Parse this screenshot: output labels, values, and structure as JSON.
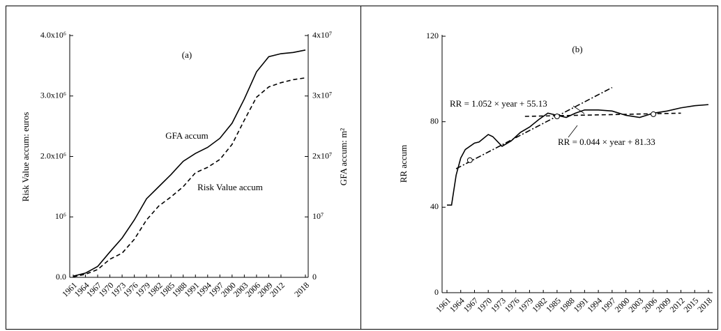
{
  "chart_data": [
    {
      "type": "line",
      "title": "(a)",
      "ylabel": "Risk Value accum: euros",
      "y2label": "GFA accum: m²",
      "x": [
        1961,
        1964,
        1967,
        1970,
        1973,
        1976,
        1979,
        1982,
        1985,
        1988,
        1991,
        1994,
        1997,
        2000,
        2003,
        2006,
        2009,
        2012,
        2015,
        2018
      ],
      "series": [
        {
          "name": "GFA accum",
          "axis": "y2",
          "color": "#000000",
          "style": "solid",
          "values": [
            200000,
            700000,
            1800000,
            4200000,
            6500000,
            9500000,
            13000000,
            15000000,
            17000000,
            19200000,
            20500000,
            21500000,
            23000000,
            25500000,
            29500000,
            34000000,
            36500000,
            37000000,
            37200000,
            37600000
          ]
        },
        {
          "name": "Risk Value accum",
          "axis": "y",
          "color": "#000000",
          "style": "dashed",
          "values": [
            10000,
            50000,
            130000,
            300000,
            400000,
            630000,
            950000,
            1180000,
            1330000,
            1500000,
            1730000,
            1820000,
            1950000,
            2200000,
            2600000,
            2980000,
            3150000,
            3220000,
            3270000,
            3300000
          ]
        }
      ],
      "xlim": [
        1961,
        2018
      ],
      "xticks": [
        1961,
        1964,
        1967,
        1970,
        1973,
        1976,
        1979,
        1982,
        1985,
        1988,
        1991,
        1994,
        1997,
        2000,
        2003,
        2006,
        2009,
        2012,
        2018
      ],
      "ylim": [
        0,
        4000000
      ],
      "yticks": [
        {
          "value": 0,
          "label": "0.0"
        },
        {
          "value": 1000000,
          "label": "10⁶"
        },
        {
          "value": 2000000,
          "label": "2.0x10⁶"
        },
        {
          "value": 3000000,
          "label": "3.0x10⁶"
        },
        {
          "value": 4000000,
          "label": "4.0x10⁶"
        }
      ],
      "y2lim": [
        0,
        40000000
      ],
      "y2ticks": [
        0,
        {
          "value": 10000000,
          "label": "10⁷"
        },
        {
          "value": 20000000,
          "label": "2x10⁷"
        },
        {
          "value": 30000000,
          "label": "3x10⁷"
        },
        {
          "value": 40000000,
          "label": "4x10⁷"
        }
      ]
    },
    {
      "type": "line",
      "title": "(b)",
      "ylabel": "RR accum",
      "x": [
        1961,
        1962,
        1963,
        1964,
        1965,
        1967,
        1968,
        1970,
        1971,
        1973,
        1975,
        1977,
        1979,
        1981,
        1983,
        1985,
        1987,
        1989,
        1991,
        1994,
        1997,
        2000,
        2003,
        2006,
        2009,
        2012,
        2015,
        2018
      ],
      "series": [
        {
          "color": "#000000",
          "style": "solid",
          "values": [
            41,
            41,
            55,
            63,
            67,
            70,
            70.5,
            74,
            73,
            68.5,
            71,
            75,
            77.5,
            81,
            84,
            83,
            82,
            84,
            85.5,
            85.5,
            85,
            83,
            82,
            84,
            85,
            86.5,
            87.5,
            88
          ]
        }
      ],
      "trend_lines": [
        {
          "label": "RR = 1.052 × year + 55.13",
          "style": "dash-dot",
          "x": [
            1963,
            1997
          ],
          "values": [
            58,
            96
          ]
        },
        {
          "label": "RR = 0.044 × year + 81.33",
          "style": "dashed",
          "x": [
            1978,
            2012
          ],
          "values": [
            82.5,
            84
          ]
        }
      ],
      "markers": {
        "x": [
          1966,
          1985,
          2006
        ],
        "values": [
          62,
          82.5,
          83.5
        ]
      },
      "xlim": [
        1961,
        2018
      ],
      "xticks": [
        1961,
        1964,
        1967,
        1970,
        1973,
        1976,
        1979,
        1982,
        1985,
        1988,
        1991,
        1994,
        1997,
        2000,
        2003,
        2006,
        2009,
        2012,
        2015,
        2018
      ],
      "ylim": [
        0,
        120
      ],
      "yticks": [
        0,
        40,
        80,
        120
      ]
    }
  ]
}
